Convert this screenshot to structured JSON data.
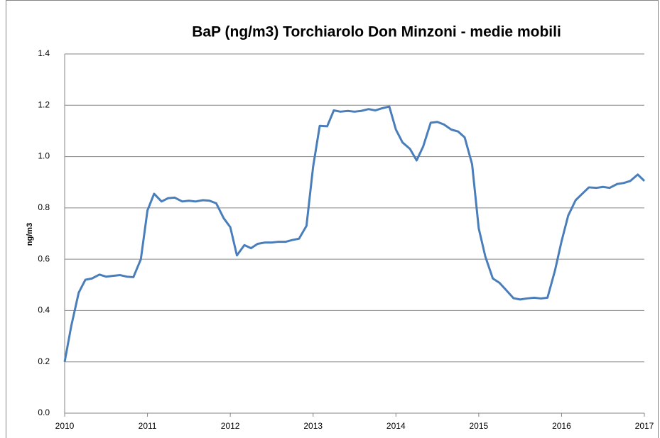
{
  "chart_data": {
    "type": "line",
    "title": "BaP (ng/m3) Torchiarolo Don Minzoni - medie mobili",
    "y_label": "ng/m3",
    "x": [
      2010.0,
      2010.08,
      2010.17,
      2010.25,
      2010.33,
      2010.42,
      2010.5,
      2010.58,
      2010.67,
      2010.75,
      2010.83,
      2010.92,
      2011.0,
      2011.08,
      2011.17,
      2011.25,
      2011.33,
      2011.42,
      2011.5,
      2011.58,
      2011.67,
      2011.75,
      2011.83,
      2011.92,
      2012.0,
      2012.08,
      2012.17,
      2012.25,
      2012.33,
      2012.42,
      2012.5,
      2012.58,
      2012.67,
      2012.75,
      2012.83,
      2012.92,
      2013.0,
      2013.08,
      2013.17,
      2013.25,
      2013.33,
      2013.42,
      2013.5,
      2013.58,
      2013.67,
      2013.75,
      2013.83,
      2013.92,
      2014.0,
      2014.08,
      2014.17,
      2014.25,
      2014.33,
      2014.42,
      2014.5,
      2014.58,
      2014.67,
      2014.75,
      2014.83,
      2014.92,
      2015.0,
      2015.08,
      2015.17,
      2015.25,
      2015.33,
      2015.42,
      2015.5,
      2015.58,
      2015.67,
      2015.75,
      2015.83,
      2015.92,
      2016.0,
      2016.08,
      2016.17,
      2016.25,
      2016.33,
      2016.42,
      2016.5,
      2016.58,
      2016.67,
      2016.75,
      2016.83,
      2016.92,
      2017.0
    ],
    "series": [
      {
        "name": "BaP",
        "color": "#4a7ebb",
        "values": [
          0.2,
          0.34,
          0.47,
          0.52,
          0.525,
          0.54,
          0.532,
          0.535,
          0.538,
          0.532,
          0.53,
          0.6,
          0.79,
          0.855,
          0.825,
          0.838,
          0.84,
          0.825,
          0.828,
          0.825,
          0.83,
          0.828,
          0.818,
          0.76,
          0.725,
          0.615,
          0.655,
          0.643,
          0.66,
          0.665,
          0.665,
          0.668,
          0.668,
          0.675,
          0.68,
          0.73,
          0.96,
          1.12,
          1.118,
          1.18,
          1.175,
          1.178,
          1.175,
          1.178,
          1.185,
          1.18,
          1.188,
          1.195,
          1.105,
          1.055,
          1.03,
          0.985,
          1.04,
          1.132,
          1.135,
          1.125,
          1.105,
          1.098,
          1.075,
          0.97,
          0.72,
          0.61,
          0.525,
          0.508,
          0.48,
          0.448,
          0.443,
          0.447,
          0.45,
          0.447,
          0.45,
          0.555,
          0.67,
          0.77,
          0.83,
          0.855,
          0.88,
          0.878,
          0.882,
          0.878,
          0.893,
          0.897,
          0.905,
          0.93,
          0.905
        ]
      }
    ],
    "xlim": [
      2010,
      2017
    ],
    "xticks": [
      2010,
      2011,
      2012,
      2013,
      2014,
      2015,
      2016,
      2017
    ],
    "ylim": [
      0,
      1.4
    ],
    "yticks": [
      {
        "value": 0,
        "label": "0.0"
      },
      0.2,
      0.4,
      0.6,
      0.8,
      {
        "value": 1,
        "label": "1.0"
      },
      1.2,
      1.4
    ],
    "grid": true
  }
}
